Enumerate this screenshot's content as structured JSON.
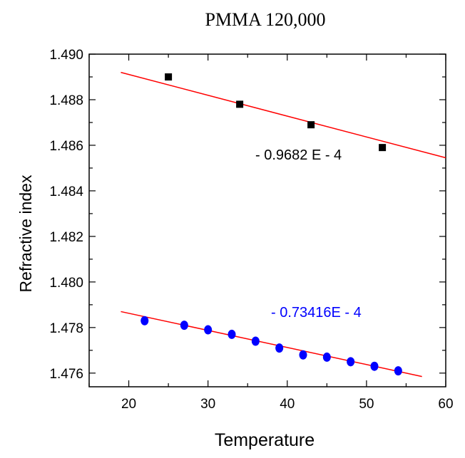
{
  "chart_data": {
    "type": "scatter",
    "title": "PMMA 120,000",
    "xlabel": "Temperature",
    "ylabel": "Refractive index",
    "xlim": [
      15,
      60
    ],
    "ylim": [
      1.4754,
      1.49
    ],
    "x_ticks": [
      20,
      30,
      40,
      50,
      60
    ],
    "y_ticks": [
      1.476,
      1.478,
      1.48,
      1.482,
      1.484,
      1.486,
      1.488,
      1.49
    ],
    "y_tick_labels": [
      "1.476",
      "1.478",
      "1.480",
      "1.482",
      "1.484",
      "1.486",
      "1.488",
      "1.490"
    ],
    "grid": false,
    "series": [
      {
        "marker": "square",
        "color": "#000000",
        "points": [
          {
            "x": 25,
            "y": 1.489
          },
          {
            "x": 34,
            "y": 1.4878
          },
          {
            "x": 43,
            "y": 1.4869
          },
          {
            "x": 52,
            "y": 1.4859
          }
        ],
        "fit": {
          "color": "#ff0000",
          "x": [
            19,
            60
          ],
          "y": [
            1.4892,
            1.48545
          ]
        },
        "annotation": "- 0.9682 E - 4",
        "annotation_color": "#000000"
      },
      {
        "marker": "circle",
        "color": "#0000ff",
        "points": [
          {
            "x": 22,
            "y": 1.4783
          },
          {
            "x": 27,
            "y": 1.4781
          },
          {
            "x": 30,
            "y": 1.4779
          },
          {
            "x": 33,
            "y": 1.4777
          },
          {
            "x": 36,
            "y": 1.4774
          },
          {
            "x": 39,
            "y": 1.4771
          },
          {
            "x": 42,
            "y": 1.4768
          },
          {
            "x": 45,
            "y": 1.4767
          },
          {
            "x": 48,
            "y": 1.4765
          },
          {
            "x": 51,
            "y": 1.4763
          },
          {
            "x": 54,
            "y": 1.4761
          }
        ],
        "fit": {
          "color": "#ff0000",
          "x": [
            19,
            57
          ],
          "y": [
            1.4787,
            1.47585
          ]
        },
        "annotation": "- 0.73416E - 4",
        "annotation_color": "#0000ff"
      }
    ]
  }
}
